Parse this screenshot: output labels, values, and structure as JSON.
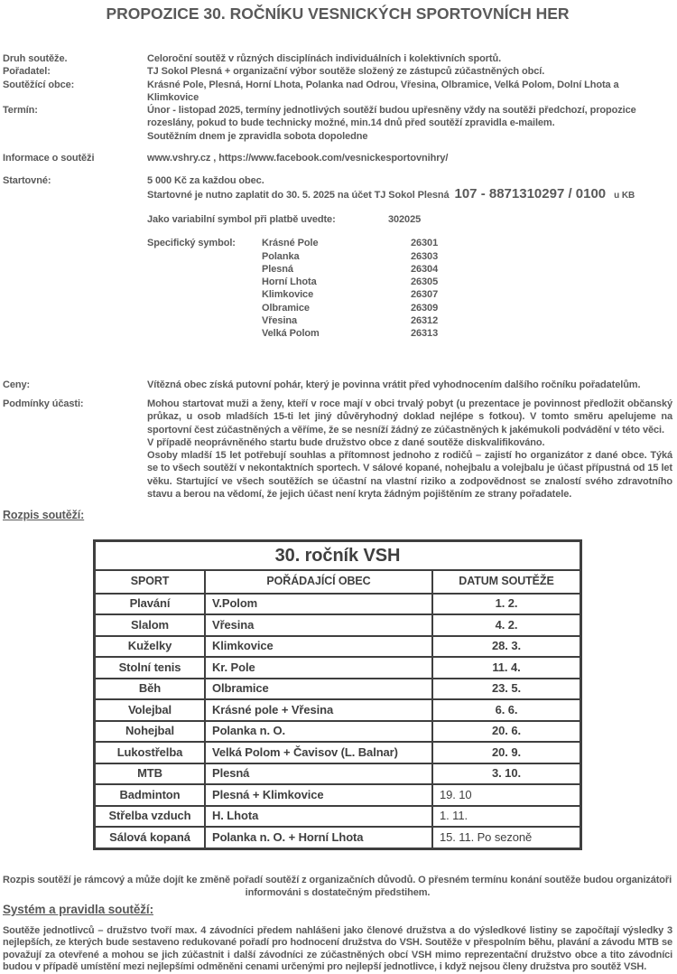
{
  "colors": {
    "text": "#595959",
    "table_text": "#3f3f3f",
    "border": "#3f3f3f",
    "background": "#ffffff"
  },
  "page": {
    "title": "PROPOZICE 30. ROČNÍKU VESNICKÝCH SPORTOVNÍCH HER"
  },
  "info": {
    "druh": {
      "label": "Druh soutěže.",
      "value": "Celoroční soutěž v různých disciplínách individuálních i kolektivních sportů."
    },
    "poradatel": {
      "label": "Pořadatel:",
      "value": "TJ Sokol Plesná + organizační výbor soutěže složený ze zástupců zúčastněných obcí."
    },
    "obce": {
      "label": "Soutěžící obce:",
      "value": "Krásné Pole, Plesná, Horní Lhota, Polanka nad Odrou, Vřesina, Olbramice, Velká Polom, Dolní Lhota a Klimkovice"
    },
    "termin": {
      "label": "Termín:",
      "line1": "Únor - listopad 2025, termíny jednotlivých soutěží budou upřesněny vždy na soutěži předchozí, propozice rozeslány, pokud to bude technicky možné, min.14 dnů před soutěží zpravidla e-mailem.",
      "line2": "Soutěžním dnem je zpravidla sobota dopoledne"
    },
    "kontakt": {
      "label": "Informace o soutěži",
      "value": "www.vshry.cz , https://www.facebook.com/vesnickesportovnihry/"
    }
  },
  "fee": {
    "label": "Startovné:",
    "amount": "5 000 Kč za každou obec.",
    "pay_prefix": "Startovné je nutno zaplatit do 30. 5. 2025 na účet TJ Sokol Plesná",
    "account": "107 - 8871310297 / 0100",
    "bank": "u KB",
    "vs_label": "Jako variabilní symbol při platbě uvedte:",
    "vs_value": "302025",
    "ss_label": "Specifický symbol:",
    "symbols": [
      {
        "obec": "Krásné Pole",
        "code": "26301"
      },
      {
        "obec": "Polanka",
        "code": "26303"
      },
      {
        "obec": "Plesná",
        "code": "26304"
      },
      {
        "obec": "Horní Lhota",
        "code": "26305"
      },
      {
        "obec": "Klimkovice",
        "code": "26307"
      },
      {
        "obec": "Olbramice",
        "code": "26309"
      },
      {
        "obec": "Vřesina",
        "code": "26312"
      },
      {
        "obec": "Velká Polom",
        "code": "26313"
      }
    ]
  },
  "prizes": {
    "label": "Ceny:",
    "value": "Vítězná obec získá putovní pohár, který je povinna vrátit před vyhodnocením dalšího ročníku pořadatelům."
  },
  "conditions": {
    "label": "Podmínky účasti:",
    "para1": "Mohou startovat muži a ženy, kteří v roce mají v obci trvalý pobyt (u prezentace je povinnost předložit občanský průkaz, u osob mladších 15-ti let jiný důvěryhodný doklad nejlépe s fotkou). V tomto směru apelujeme na sportovní čest zúčastněných a věříme, že se nesníží žádný ze zúčastněných k jakémukoli podvádění v této věci.",
    "para2": "V případě neoprávněného startu bude družstvo obce z dané soutěže diskvalifikováno.",
    "para3": "Osoby mladší 15 let potřebují souhlas a přítomnost jednoho z rodičů – zajistí ho organizátor z dané obce. Týká se to všech soutěží v nekontaktních sportech. V sálové kopané, nohejbalu a volejbalu je účast přípustná od 15 let věku. Startující ve všech soutěžích se účastní na vlastní riziko a zodpovědnost se znalostí svého zdravotního stavu a berou na vědomí, že jejich účast není kryta žádným pojištěním ze strany pořadatele."
  },
  "schedule": {
    "heading": "Rozpis soutěží:",
    "table": {
      "title": "30. ročník VSH",
      "columns": [
        "SPORT",
        "POŘÁDAJÍCÍ OBEC",
        "DATUM SOUTĚŽE"
      ],
      "rows": [
        {
          "sport": "Plavání",
          "obec": "V.Polom",
          "datum": "1. 2."
        },
        {
          "sport": "Slalom",
          "obec": "Vřesina",
          "datum": "4. 2."
        },
        {
          "sport": "Kuželky",
          "obec": "Klimkovice",
          "datum": "28. 3."
        },
        {
          "sport": "Stolní tenis",
          "obec": "Kr. Pole",
          "datum": "11. 4."
        },
        {
          "sport": "Běh",
          "obec": "Olbramice",
          "datum": "23. 5."
        },
        {
          "sport": "Volejbal",
          "obec": "Krásné pole + Vřesina",
          "datum": "6. 6."
        },
        {
          "sport": "Nohejbal",
          "obec": "Polanka n. O.",
          "datum": "20. 6."
        },
        {
          "sport": "Lukostřelba",
          "obec": "Velká Polom + Čavisov (L. Balnar)",
          "datum": "20. 9."
        },
        {
          "sport": "MTB",
          "obec": "Plesná",
          "datum": "3. 10."
        },
        {
          "sport": "Badminton",
          "obec": "Plesná + Klimkovice",
          "datum": "19. 10"
        },
        {
          "sport": "Střelba vzduch",
          "obec": "H. Lhota",
          "datum": "1. 11."
        },
        {
          "sport": "Sálová kopaná",
          "obec": "Polanka n. O. + Horní Lhota",
          "datum": "15. 11. Po sezoně"
        }
      ]
    },
    "note_line1": "Rozpis soutěží je rámcový a může dojít ke změně pořadí soutěží z organizačních důvodů. O přesném termínu konání soutěže budou organizátoři",
    "note_line2": "informováni s dostatečným předstihem."
  },
  "rules": {
    "heading": "Systém a pravidla soutěží:",
    "paragraph": "Soutěže jednotlivců – družstvo tvoří max. 4 závodníci předem nahlášeni jako členové družstva a do výsledkové listiny se započítají výsledky 3 nejlepších, ze kterých bude sestaveno redukované pořadí pro hodnocení družstva do VSH. Soutěže v přespolním běhu, plavání a závodu MTB se považují za otevřené a mohou se jich zúčastnit i další závodníci ze zúčastněných obcí VSH mimo reprezentační družstvo obce a tito závodníci budou v případě umístění mezi nejlepšími odměněni cenami určenými pro nejlepší jednotlivce, i když nejsou členy družstva pro soutěž VSH."
  }
}
